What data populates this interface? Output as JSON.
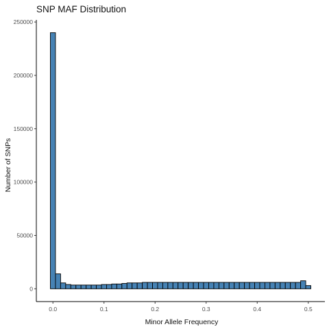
{
  "chart_data": {
    "type": "bar",
    "title": "SNP MAF Distribution",
    "xlabel": "Minor Allele Frequency",
    "ylabel": "Number of SNPs",
    "xlim": [
      -0.0325,
      0.5325
    ],
    "ylim": [
      -12000,
      252000
    ],
    "grid": false,
    "x_ticks": [
      0.0,
      0.1,
      0.2,
      0.3,
      0.4,
      0.5
    ],
    "x_tick_labels": [
      "0.0",
      "0.1",
      "0.2",
      "0.3",
      "0.4",
      "0.5"
    ],
    "y_ticks": [
      0,
      50000,
      100000,
      150000,
      200000,
      250000
    ],
    "y_tick_labels": [
      "0",
      "50000",
      "100000",
      "150000",
      "200000",
      "250000"
    ],
    "bar_color": "#4682B4",
    "bar_edge_color": "#000000",
    "bin_start": -0.005,
    "bin_width": 0.01,
    "bin_labels": [
      "0.00",
      "0.01",
      "0.02",
      "0.03",
      "0.04",
      "0.05",
      "0.06",
      "0.07",
      "0.08",
      "0.09",
      "0.10",
      "0.11",
      "0.12",
      "0.13",
      "0.14",
      "0.15",
      "0.16",
      "0.17",
      "0.18",
      "0.19",
      "0.20",
      "0.21",
      "0.22",
      "0.23",
      "0.24",
      "0.25",
      "0.26",
      "0.27",
      "0.28",
      "0.29",
      "0.30",
      "0.31",
      "0.32",
      "0.33",
      "0.34",
      "0.35",
      "0.36",
      "0.37",
      "0.38",
      "0.39",
      "0.40",
      "0.41",
      "0.42",
      "0.43",
      "0.44",
      "0.45",
      "0.46",
      "0.47",
      "0.48",
      "0.49",
      "0.50"
    ],
    "values": [
      240000,
      14000,
      5500,
      4000,
      3500,
      3500,
      3500,
      3500,
      3500,
      3500,
      4000,
      4000,
      4500,
      4500,
      5000,
      5500,
      5500,
      5500,
      6000,
      6000,
      6000,
      6000,
      6000,
      6000,
      6000,
      6000,
      6000,
      6000,
      6000,
      6000,
      6000,
      6000,
      6000,
      6000,
      6000,
      6000,
      6000,
      6000,
      6000,
      6000,
      6000,
      6000,
      6000,
      6000,
      6000,
      6000,
      6000,
      6000,
      6000,
      7500,
      3000
    ]
  }
}
